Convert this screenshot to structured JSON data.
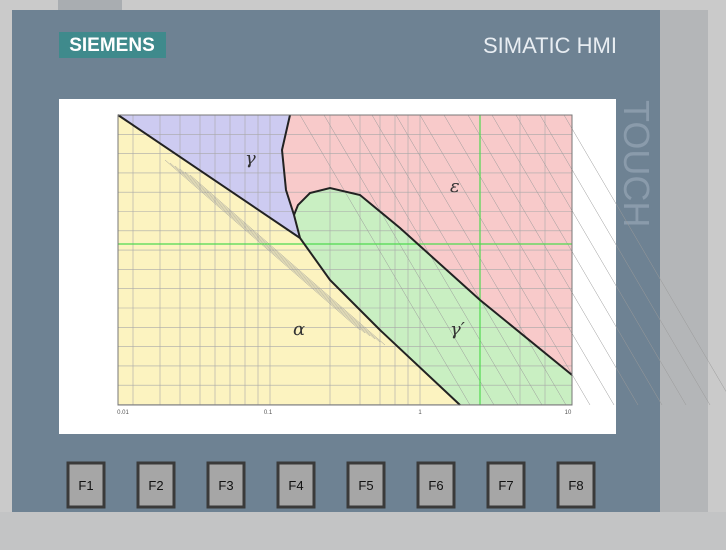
{
  "header": {
    "brand": "SIEMENS",
    "product": "SIMATIC HMI",
    "side_label": "TOUCH"
  },
  "screen": {
    "phases": [
      "γ",
      "ε",
      "α",
      "γ′"
    ],
    "x_tick_labels": [
      "0.01",
      "0.1",
      "1",
      "10"
    ]
  },
  "keys": [
    "F1",
    "F2",
    "F3",
    "F4",
    "F5",
    "F6",
    "F7",
    "F8"
  ]
}
